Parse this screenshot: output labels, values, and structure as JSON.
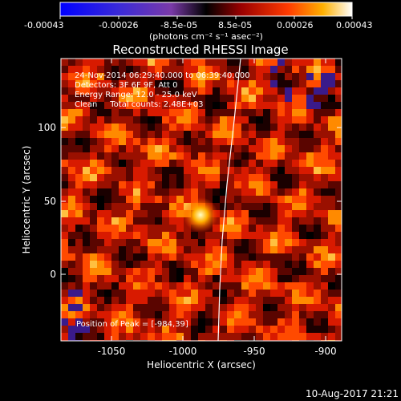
{
  "colorbar": {
    "ticks": [
      "-0.00043",
      "-0.00026",
      "-8.5e-05",
      "8.5e-05",
      "0.00026",
      "0.00043"
    ],
    "unit_label": "(photons cm⁻² s⁻¹ asec⁻²)"
  },
  "plot": {
    "title": "Reconstructed RHESSI Image",
    "info_lines": [
      "24-Nov-2014 06:29:40.000 to 06:39:40.000",
      "Detectors: 3F 6F 9F, Att 0",
      "Energy Range: 12.0 - 25.0 keV",
      "Clean     Total counts: 2.48E+03"
    ],
    "peak_label": "Position of Peak = [-984,39]",
    "xlabel": "Heliocentric X (arcsec)",
    "ylabel": "Heliocentric Y (arcsec)",
    "x_ticks": [
      "-1050",
      "-1000",
      "-950",
      "-900"
    ],
    "y_ticks": [
      "100",
      "50",
      "0"
    ]
  },
  "footer": {
    "date": "10-Aug-2017 21:21"
  },
  "colors": {
    "background": "#000000",
    "foreground": "#ffffff",
    "hot_low": "#1a0000",
    "hot_mid": "#d81a00",
    "hot_high": "#ffffe0",
    "negative": "#3a1a8a"
  }
}
